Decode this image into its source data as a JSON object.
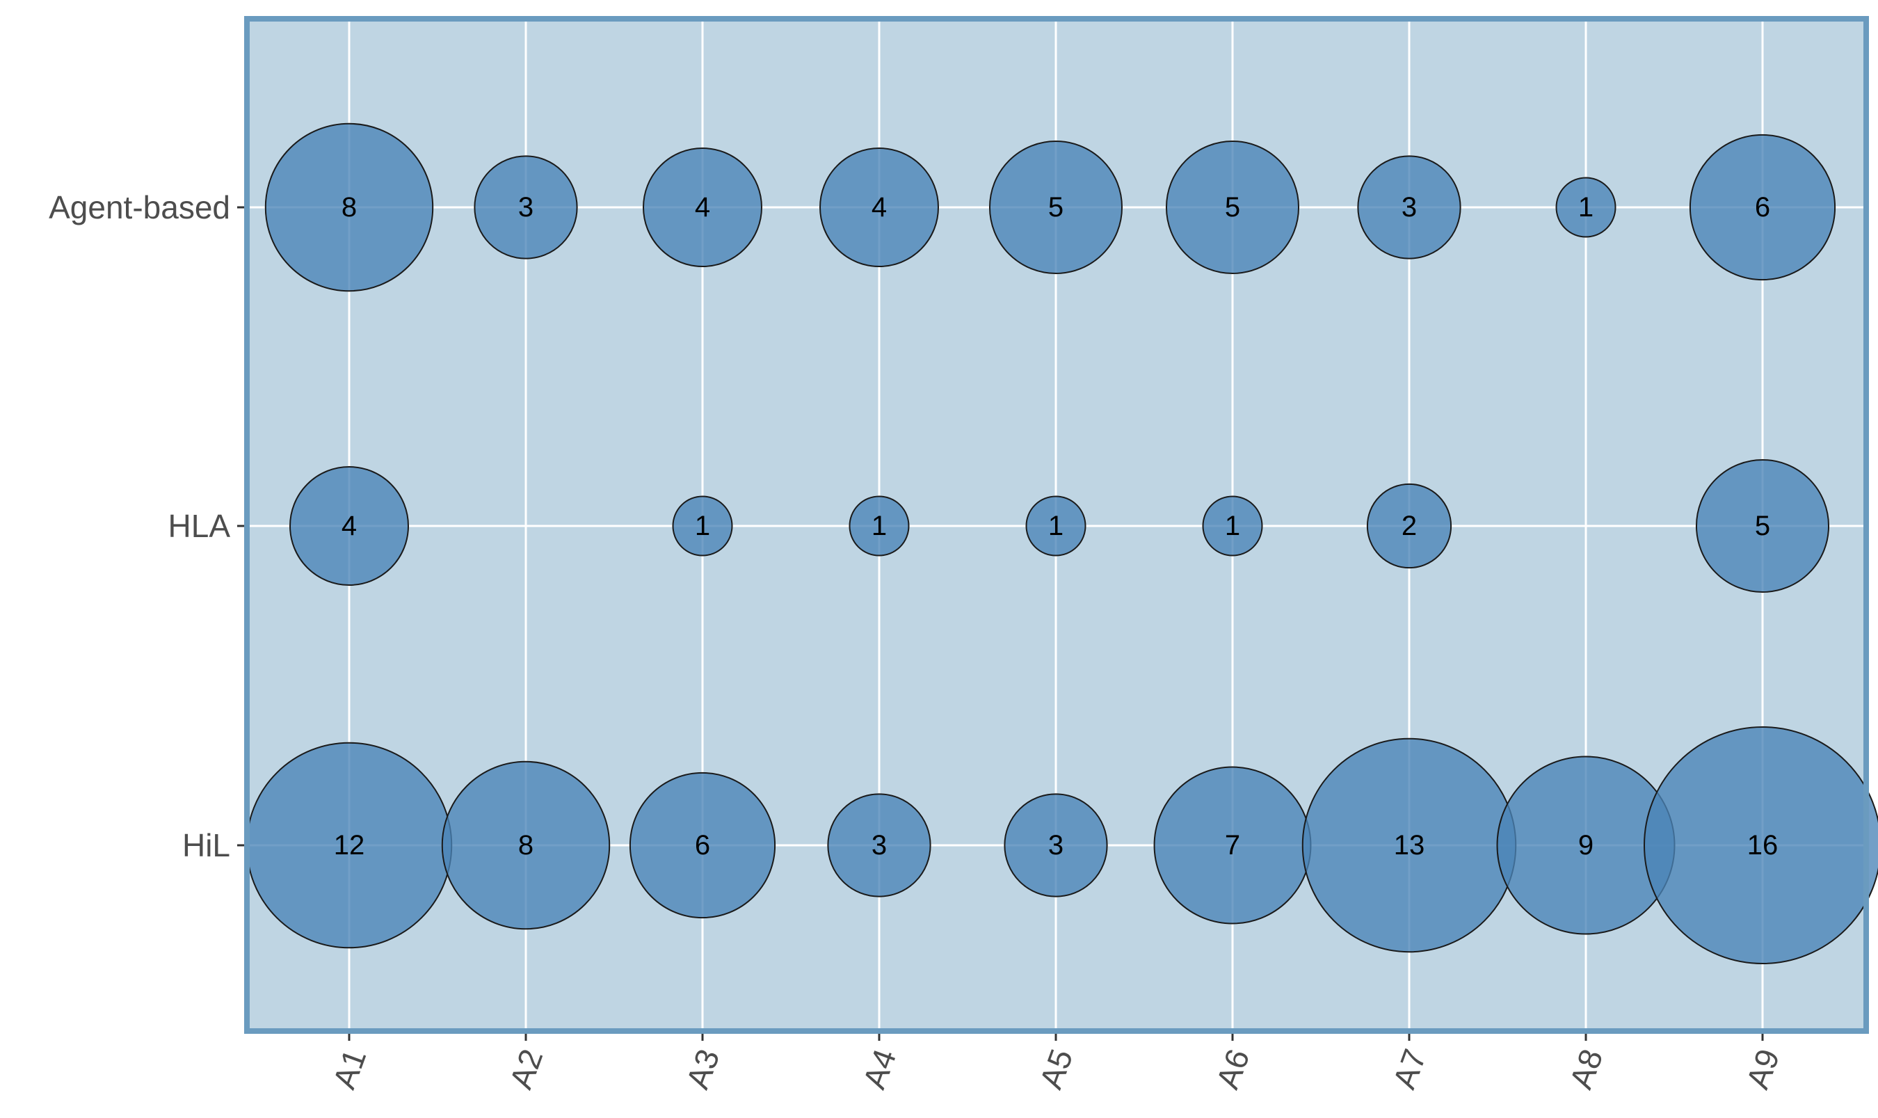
{
  "chart_data": {
    "type": "scatter",
    "subtype": "bubble",
    "title": "",
    "xlabel": "",
    "ylabel": "",
    "categories": [
      "A1",
      "A2",
      "A3",
      "A4",
      "A5",
      "A6",
      "A7",
      "A8",
      "A9"
    ],
    "rows": [
      "Agent-based",
      "HLA",
      "HiL"
    ],
    "series": [
      {
        "row": "Agent-based",
        "values": [
          8,
          3,
          4,
          4,
          5,
          5,
          3,
          1,
          6
        ]
      },
      {
        "row": "HLA",
        "values": [
          4,
          0,
          1,
          1,
          1,
          1,
          2,
          0,
          5
        ]
      },
      {
        "row": "HiL",
        "values": [
          12,
          8,
          6,
          3,
          3,
          7,
          13,
          9,
          16
        ]
      }
    ],
    "grid": true,
    "legend": "none",
    "colors": {
      "panel_background": "#bfd5e3",
      "panel_border": "#6a9bbf",
      "bubble_fill": "#4a84b7",
      "bubble_stroke": "#1a1a1a",
      "grid": "#ffffff",
      "tick_text": "#4d4d4d"
    }
  }
}
